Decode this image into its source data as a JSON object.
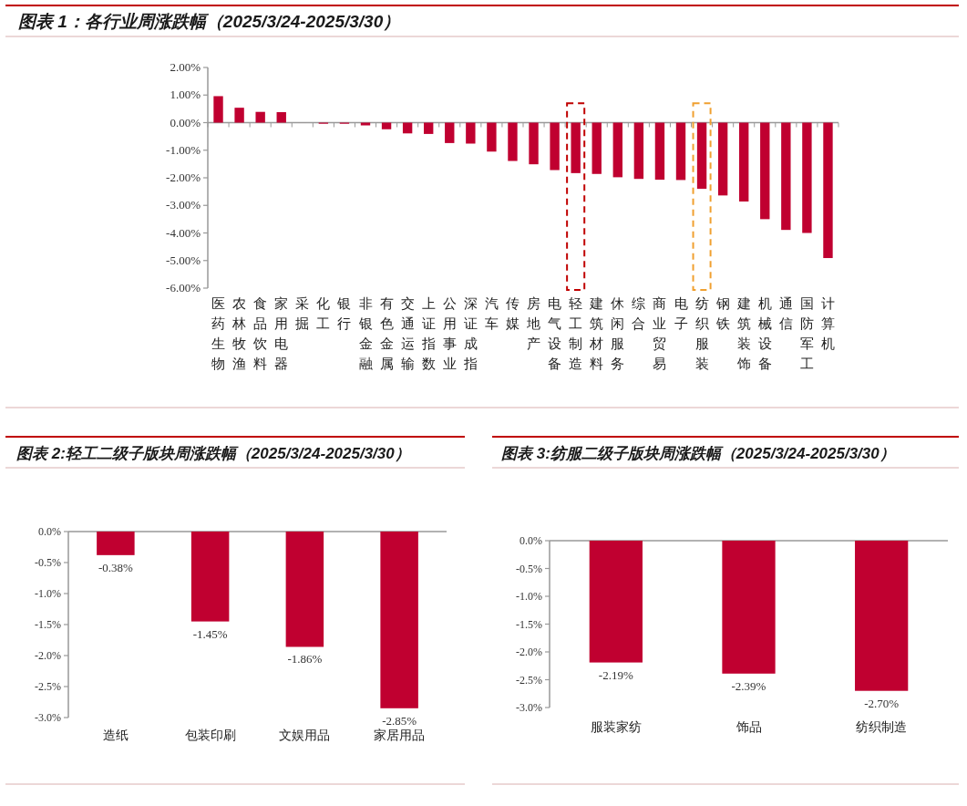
{
  "chart_data": [
    {
      "type": "bar",
      "title": "图表 1：各行业周涨跌幅（2025/3/24-2025/3/30）",
      "categories": [
        "医药生物",
        "农林牧渔",
        "食品饮料",
        "家用电器",
        "采掘",
        "化工",
        "银行",
        "非银金融",
        "有色金属",
        "交通运输",
        "上证指数",
        "公用事业",
        "深证成指",
        "汽车",
        "传媒",
        "房地产",
        "电气设备",
        "轻工制造",
        "建筑材料",
        "休闲服务",
        "综合",
        "商业贸易",
        "电子",
        "纺织服装",
        "钢铁",
        "建筑装饰",
        "机械设备",
        "通信",
        "国防军工",
        "计算机"
      ],
      "values": [
        0.96,
        0.54,
        0.39,
        0.38,
        0,
        -0.04,
        -0.04,
        -0.1,
        -0.24,
        -0.39,
        -0.41,
        -0.74,
        -0.76,
        -1.05,
        -1.39,
        -1.51,
        -1.72,
        -1.83,
        -1.86,
        -1.98,
        -2.04,
        -2.07,
        -2.08,
        -2.4,
        -2.64,
        -2.86,
        -3.5,
        -3.89,
        -4.0,
        -4.91
      ],
      "color": "#c00030",
      "ylim": [
        -6,
        2
      ],
      "yticks": [
        {
          "value": 2,
          "label": "2.00%"
        },
        {
          "value": 1,
          "label": "1.00%"
        },
        {
          "value": 0,
          "label": "0.00%"
        },
        {
          "value": -1,
          "label": "-1.00%"
        },
        {
          "value": -2,
          "label": "-2.00%"
        },
        {
          "value": -3,
          "label": "-3.00%"
        },
        {
          "value": -4,
          "label": "-4.00%"
        },
        {
          "value": -5,
          "label": "-5.00%"
        },
        {
          "value": -6,
          "label": "-6.00%"
        }
      ],
      "legend": false
    },
    {
      "type": "bar",
      "title": "图表 2:轻工二级子版块周涨跌幅（2025/3/24-2025/3/30）",
      "categories": [
        "造纸",
        "包装印刷",
        "文娱用品",
        "家居用品"
      ],
      "values": [
        -0.38,
        -1.45,
        -1.86,
        -2.85
      ],
      "value_labels": [
        "-0.38%",
        "-1.45%",
        "-1.86%",
        "-2.85%"
      ],
      "color": "#c00030",
      "ylim": [
        -3,
        0
      ],
      "yticks": [
        {
          "value": 0,
          "label": "0.0%"
        },
        {
          "value": -0.5,
          "label": "-0.5%"
        },
        {
          "value": -1,
          "label": "-1.0%"
        },
        {
          "value": -1.5,
          "label": "-1.5%"
        },
        {
          "value": -2,
          "label": "-2.0%"
        },
        {
          "value": -2.5,
          "label": "-2.5%"
        },
        {
          "value": -3,
          "label": "-3.0%"
        }
      ],
      "legend": false
    },
    {
      "type": "bar",
      "title": "图表 3:纺服二级子版块周涨跌幅（2025/3/24-2025/3/30）",
      "categories": [
        "服装家纺",
        "饰品",
        "纺织制造"
      ],
      "values": [
        -2.19,
        -2.39,
        -2.7
      ],
      "value_labels": [
        "-2.19%",
        "-2.39%",
        "-2.70%"
      ],
      "color": "#c00030",
      "ylim": [
        -3,
        0
      ],
      "yticks": [
        {
          "value": 0,
          "label": "0.0%"
        },
        {
          "value": -0.5,
          "label": "-0.5%"
        },
        {
          "value": -1,
          "label": "-1.0%"
        },
        {
          "value": -1.5,
          "label": "-1.5%"
        },
        {
          "value": -2,
          "label": "-2.0%"
        },
        {
          "value": -2.5,
          "label": "-2.5%"
        },
        {
          "value": -3,
          "label": "-3.0%"
        }
      ],
      "legend": false
    }
  ]
}
